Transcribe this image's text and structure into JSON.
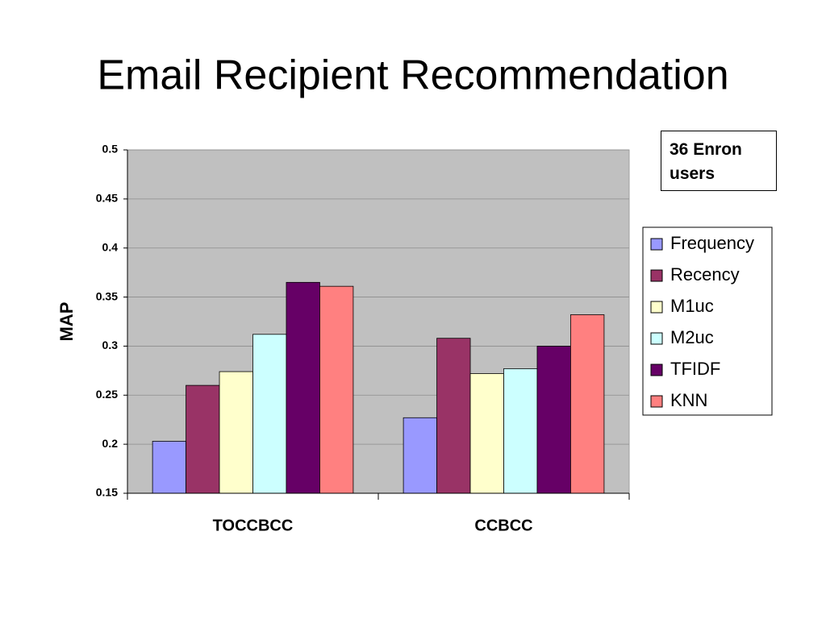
{
  "chart_data": {
    "type": "bar",
    "title": "Email Recipient Recommendation",
    "annotation": "36 Enron users",
    "y_label": "MAP",
    "categories": [
      "TOCCBCC",
      "CCBCC"
    ],
    "series": [
      {
        "name": "Frequency",
        "color": "#9999ff",
        "values": [
          0.203,
          0.227
        ]
      },
      {
        "name": "Recency",
        "color": "#993366",
        "values": [
          0.26,
          0.308
        ]
      },
      {
        "name": "M1uc",
        "color": "#ffffcc",
        "values": [
          0.274,
          0.272
        ]
      },
      {
        "name": "M2uc",
        "color": "#ccffff",
        "values": [
          0.312,
          0.277
        ]
      },
      {
        "name": "TFIDF",
        "color": "#660066",
        "values": [
          0.365,
          0.3
        ]
      },
      {
        "name": "KNN",
        "color": "#ff8080",
        "values": [
          0.361,
          0.332
        ]
      }
    ],
    "ylim": [
      0.15,
      0.5
    ],
    "yticks": [
      0.15,
      0.2,
      0.25,
      0.3,
      0.35,
      0.4,
      0.45,
      0.5
    ],
    "grid": true,
    "legend": "right",
    "plot_background": "#c0c0c0"
  }
}
